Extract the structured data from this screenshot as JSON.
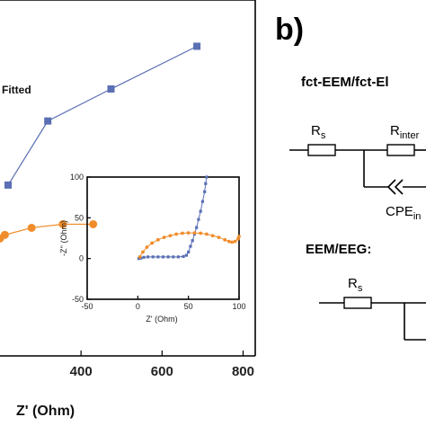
{
  "chart_data": [
    {
      "type": "scatter",
      "xlabel": "Z' (Ohm)",
      "ylabel": "",
      "xlim": [
        200,
        830
      ],
      "ylim": [
        0,
        100
      ],
      "x_ticks": [
        "400",
        "600",
        "800"
      ],
      "legend": {
        "placement": "top-left",
        "entries": [
          "Fitted"
        ]
      },
      "series": [
        {
          "name": "",
          "color": "#5a6fb4",
          "marker": "square",
          "points": [
            [
              220,
              48
            ],
            [
              318,
              66
            ],
            [
              474,
              75
            ],
            [
              686,
              87
            ]
          ]
        },
        {
          "name": "",
          "color": "#f08c2a",
          "marker": "circle",
          "points": [
            [
              200,
              33
            ],
            [
              212,
              34
            ],
            [
              278,
              36
            ],
            [
              355,
              37
            ],
            [
              430,
              37
            ]
          ]
        }
      ]
    },
    {
      "type": "scatter",
      "xlabel": "Z' (Ohm)",
      "ylabel": "-Z'' (Ohm)",
      "xlim": [
        -50,
        100
      ],
      "ylim": [
        -50,
        100
      ],
      "x_ticks": [
        "-50",
        "0",
        "50",
        "100"
      ],
      "y_ticks": [
        "100",
        "50",
        "0",
        "-50"
      ],
      "series": [
        {
          "name": "",
          "color": "#5a6fb4",
          "marker": "square",
          "points": [
            [
              1,
              0
            ],
            [
              3,
              0.5
            ],
            [
              6,
              1.5
            ],
            [
              10,
              2
            ],
            [
              15,
              2
            ],
            [
              20,
              2
            ],
            [
              25,
              2
            ],
            [
              30,
              2
            ],
            [
              35,
              2
            ],
            [
              40,
              2
            ],
            [
              45,
              2.5
            ],
            [
              48,
              4
            ],
            [
              50,
              8
            ],
            [
              52,
              15
            ],
            [
              54,
              22
            ],
            [
              56,
              30
            ],
            [
              58,
              38
            ],
            [
              60,
              48
            ],
            [
              62,
              58
            ],
            [
              64,
              70
            ],
            [
              66,
              82
            ],
            [
              67,
              92
            ],
            [
              68,
              100
            ]
          ]
        },
        {
          "name": "",
          "color": "#f08c2a",
          "marker": "circle",
          "points": [
            [
              2,
              2
            ],
            [
              5,
              8
            ],
            [
              9,
              14
            ],
            [
              14,
              19
            ],
            [
              20,
              23
            ],
            [
              26,
              26
            ],
            [
              32,
              28
            ],
            [
              38,
              30
            ],
            [
              44,
              31
            ],
            [
              50,
              31.5
            ],
            [
              56,
              31.5
            ],
            [
              62,
              31
            ],
            [
              68,
              30
            ],
            [
              74,
              28
            ],
            [
              80,
              26
            ],
            [
              86,
              23
            ],
            [
              90,
              21
            ],
            [
              93,
              20
            ],
            [
              96,
              21
            ],
            [
              99,
              24
            ],
            [
              100,
              27
            ]
          ]
        }
      ]
    }
  ],
  "panel_label": "b)",
  "circuit": {
    "heading_1": "fct-EEM/fct-El",
    "rs_main": "R",
    "rs_sub": "s",
    "rinter_main": "R",
    "rinter_sub": "inter",
    "cpe_main": "CPE",
    "cpe_sub": "in",
    "heading_2": "EEM/EEG:",
    "rs2_main": "R",
    "rs2_sub": "s"
  }
}
